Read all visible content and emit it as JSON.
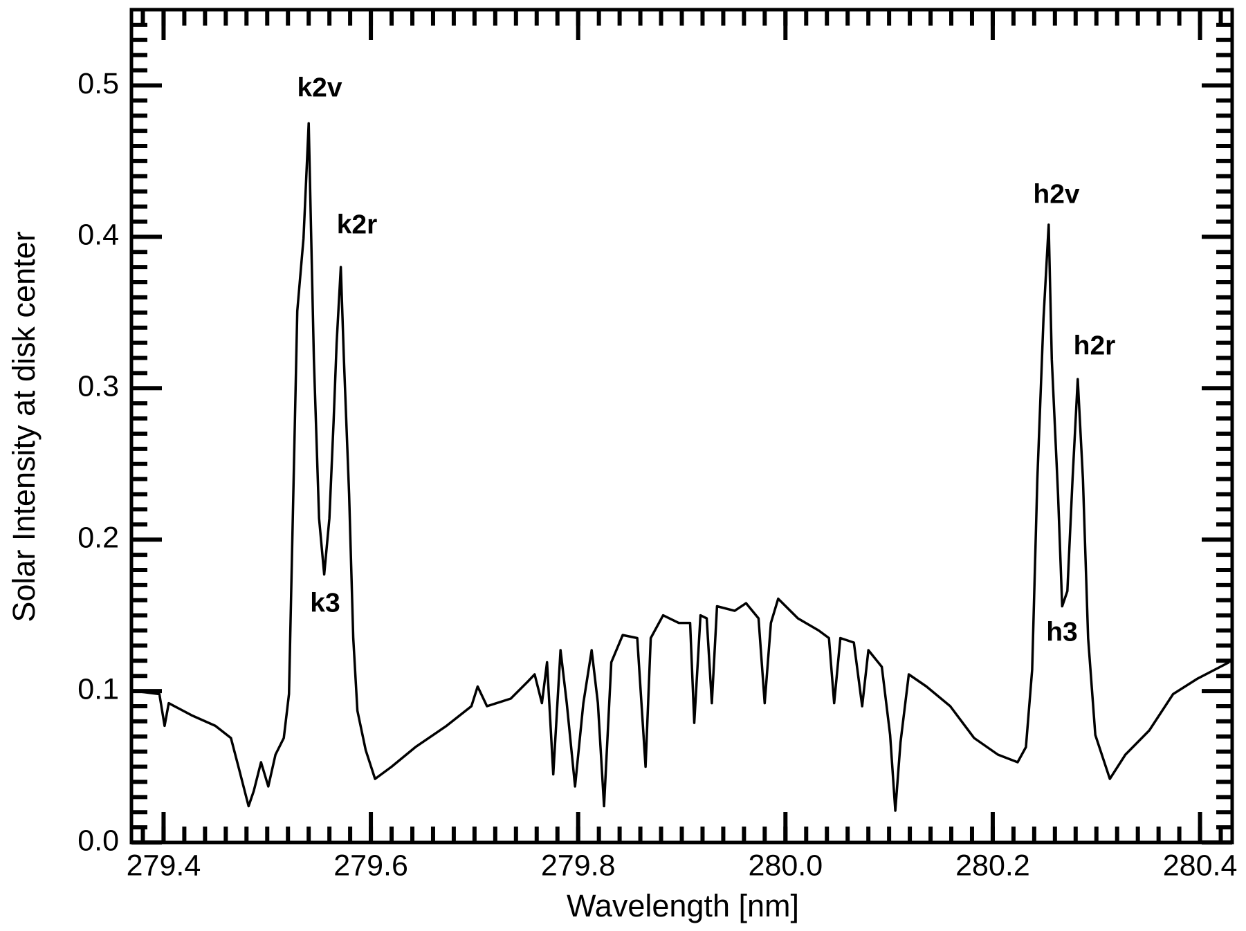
{
  "chart_data": {
    "type": "line",
    "xlabel": "Wavelength [nm]",
    "ylabel": "Solar Intensity at disk center",
    "xlim": [
      279.369,
      280.431
    ],
    "ylim": [
      0,
      0.55
    ],
    "xticks": [
      279.4,
      279.6,
      279.8,
      {
        "value": 280.0,
        "label": "280.0"
      },
      280.2,
      280.4
    ],
    "yticks": [
      {
        "value": 0,
        "label": "0.0"
      },
      0.1,
      0.2,
      0.3,
      0.4,
      0.5
    ],
    "xminorticks": [
      279.38,
      279.4,
      279.42,
      279.44,
      279.46,
      279.48,
      279.5,
      279.52,
      279.54,
      279.56,
      279.58,
      279.6,
      279.62,
      279.64,
      279.66,
      279.68,
      279.7,
      279.72,
      279.74,
      279.76,
      279.78,
      279.8,
      279.82,
      279.84,
      279.86,
      279.88,
      279.9,
      279.92,
      279.94,
      279.96,
      279.98,
      280.0,
      280.02,
      280.04,
      280.06,
      280.08,
      280.1,
      280.12,
      280.14,
      280.16,
      280.18,
      280.2,
      280.22,
      280.24,
      280.26,
      280.28,
      280.3,
      280.32,
      280.34,
      280.36,
      280.38,
      280.4,
      280.42
    ],
    "yminorticks": [
      0.01,
      0.02,
      0.03,
      0.04,
      0.05,
      0.06,
      0.07,
      0.08,
      0.09,
      0.11,
      0.12,
      0.13,
      0.14,
      0.15,
      0.16,
      0.17,
      0.18,
      0.19,
      0.21,
      0.22,
      0.23,
      0.24,
      0.25,
      0.26,
      0.27,
      0.28,
      0.29,
      0.31,
      0.32,
      0.33,
      0.34,
      0.35,
      0.36,
      0.37,
      0.38,
      0.39,
      0.41,
      0.42,
      0.43,
      0.44,
      0.45,
      0.46,
      0.47,
      0.48,
      0.49,
      0.51,
      0.52,
      0.53,
      0.54
    ],
    "annotations": [
      "k2v",
      "k2r",
      "k3",
      "h2v",
      "h2r",
      "h3"
    ],
    "color": "#000000",
    "x": [
      279.373,
      279.396,
      279.401,
      279.405,
      279.427,
      279.45,
      279.465,
      279.473,
      279.482,
      279.487,
      279.494,
      279.501,
      279.508,
      279.516,
      279.521,
      279.529,
      279.535,
      279.54,
      279.545,
      279.55,
      279.555,
      279.56,
      279.564,
      279.567,
      279.571,
      279.574,
      279.579,
      279.583,
      279.587,
      279.595,
      279.604,
      279.62,
      279.643,
      279.673,
      279.697,
      279.703,
      279.712,
      279.735,
      279.751,
      279.758,
      279.765,
      279.77,
      279.776,
      279.783,
      279.789,
      279.797,
      279.805,
      279.813,
      279.819,
      279.825,
      279.832,
      279.843,
      279.857,
      279.865,
      279.87,
      279.882,
      279.897,
      279.908,
      279.912,
      279.918,
      279.924,
      279.929,
      279.934,
      279.951,
      279.962,
      279.974,
      279.98,
      279.986,
      279.993,
      280.012,
      280.032,
      280.042,
      280.047,
      280.053,
      280.066,
      280.074,
      280.08,
      280.093,
      280.101,
      280.106,
      280.111,
      280.119,
      280.136,
      280.159,
      280.182,
      280.205,
      280.224,
      280.232,
      280.238,
      280.243,
      280.249,
      280.254,
      280.257,
      280.263,
      280.267,
      280.272,
      280.277,
      280.282,
      280.287,
      280.292,
      280.299,
      280.313,
      280.328,
      280.351,
      280.374,
      280.397,
      280.428
    ],
    "values": [
      0.1,
      0.098,
      0.077,
      0.092,
      0.084,
      0.077,
      0.069,
      0.048,
      0.024,
      0.034,
      0.053,
      0.037,
      0.058,
      0.069,
      0.098,
      0.351,
      0.399,
      0.475,
      0.319,
      0.214,
      0.177,
      0.214,
      0.277,
      0.33,
      0.38,
      0.319,
      0.23,
      0.135,
      0.087,
      0.061,
      0.042,
      0.05,
      0.063,
      0.077,
      0.09,
      0.103,
      0.09,
      0.095,
      0.106,
      0.111,
      0.092,
      0.119,
      0.045,
      0.127,
      0.092,
      0.037,
      0.092,
      0.127,
      0.092,
      0.024,
      0.119,
      0.137,
      0.135,
      0.05,
      0.135,
      0.15,
      0.145,
      0.145,
      0.079,
      0.15,
      0.148,
      0.092,
      0.156,
      0.153,
      0.158,
      0.148,
      0.092,
      0.145,
      0.161,
      0.148,
      0.14,
      0.135,
      0.092,
      0.135,
      0.132,
      0.09,
      0.127,
      0.116,
      0.071,
      0.021,
      0.066,
      0.111,
      0.103,
      0.09,
      0.069,
      0.058,
      0.053,
      0.063,
      0.114,
      0.24,
      0.346,
      0.408,
      0.319,
      0.23,
      0.156,
      0.166,
      0.24,
      0.306,
      0.24,
      0.135,
      0.071,
      0.042,
      0.058,
      0.074,
      0.098,
      0.108,
      0.119
    ]
  }
}
